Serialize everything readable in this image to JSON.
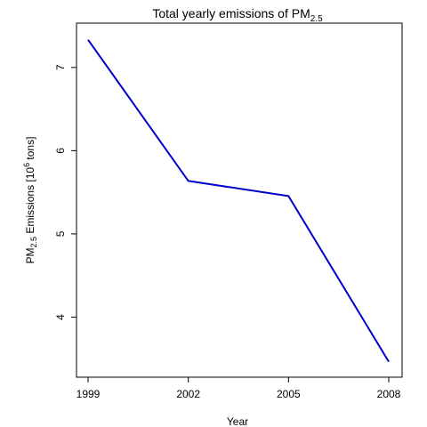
{
  "chart_data": {
    "type": "line",
    "title": {
      "main": "Total yearly emissions of PM",
      "subscript": "2.5"
    },
    "xlabel": "Year",
    "ylabel": {
      "prefix": "PM",
      "sub": "2.5",
      "middle": " Emissions  [10",
      "sup": "6",
      "suffix": " tons]"
    },
    "x": [
      1999,
      2002,
      2005,
      2008
    ],
    "x_ticks": [
      "1999",
      "2002",
      "2005",
      "2008"
    ],
    "y_ticks": [
      "4",
      "5",
      "6",
      "7"
    ],
    "y_tick_values": [
      4,
      5,
      6,
      7
    ],
    "xlim": [
      1999,
      2008
    ],
    "ylim": [
      3.46,
      7.34
    ],
    "series": [
      {
        "values": [
          7.332967,
          5.63578,
          5.454703,
          3.464206
        ],
        "color": "#0000cc"
      }
    ],
    "grid": false,
    "legend": "none"
  }
}
